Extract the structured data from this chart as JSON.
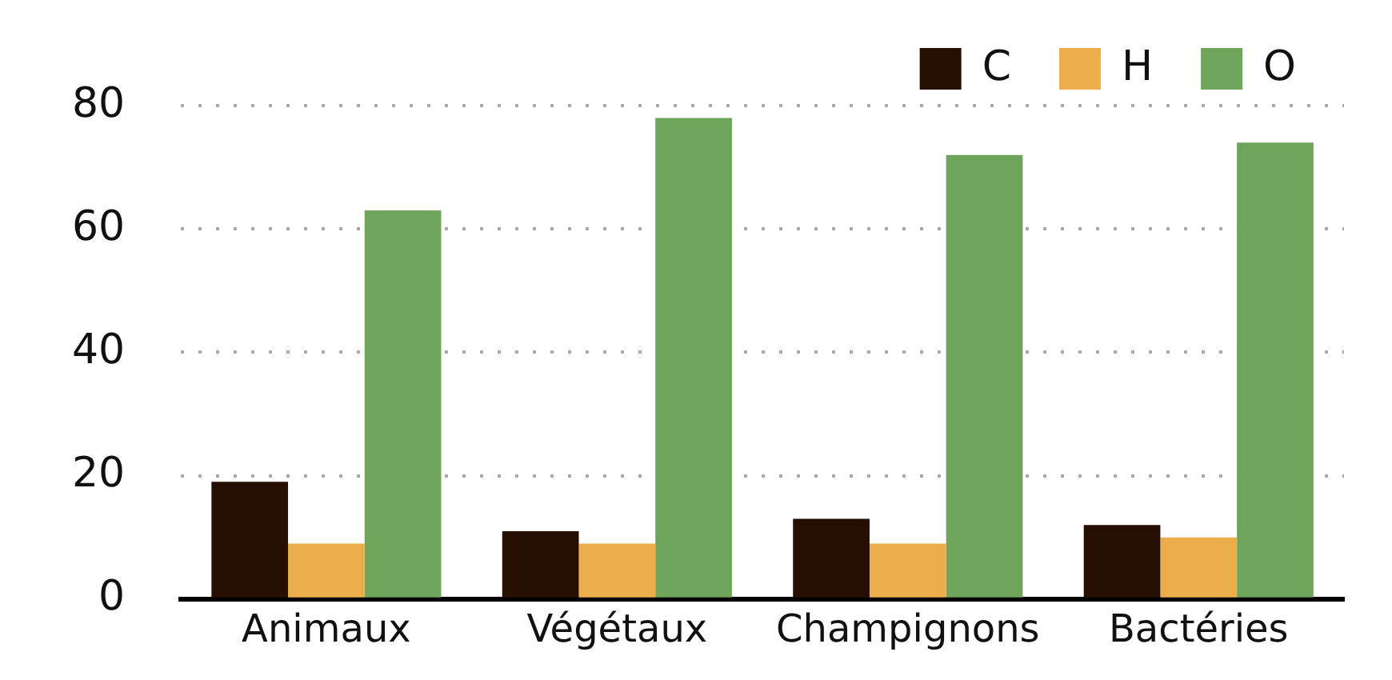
{
  "chart_data": {
    "type": "bar",
    "categories": [
      "Animaux",
      "Végétaux",
      "Champignons",
      "Bactéries"
    ],
    "series": [
      {
        "name": "C",
        "color": "#260f02",
        "values": [
          19,
          11,
          13,
          12
        ]
      },
      {
        "name": "H",
        "color": "#ebae4c",
        "values": [
          9,
          9,
          9,
          10
        ]
      },
      {
        "name": "O",
        "color": "#6ea55a",
        "values": [
          63,
          78,
          72,
          74
        ]
      }
    ],
    "ylim": [
      0,
      80
    ],
    "yticks": [
      0,
      20,
      40,
      60,
      80
    ],
    "grid": "y",
    "legend": "top right"
  }
}
